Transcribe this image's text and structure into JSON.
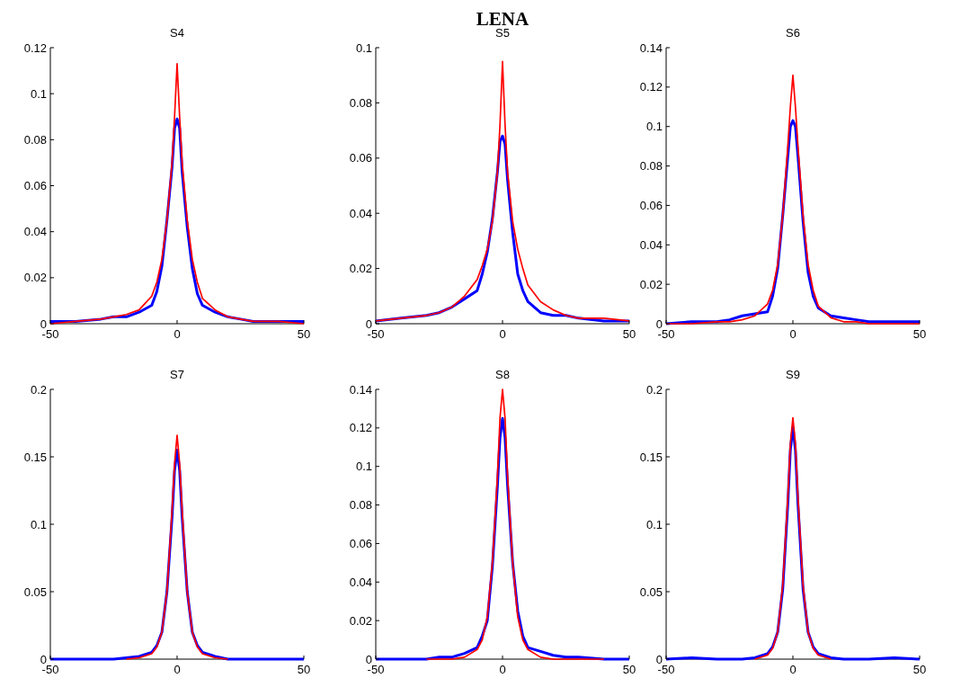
{
  "chart_data": [
    {
      "type": "line",
      "title": "S4",
      "annotations": [
        "LENA"
      ],
      "x": [
        -50,
        -40,
        -30,
        -25,
        -20,
        -15,
        -10,
        -8,
        -6,
        -4,
        -2,
        -1,
        0,
        1,
        2,
        4,
        6,
        8,
        10,
        15,
        20,
        25,
        30,
        40,
        50
      ],
      "xlim": [
        -50,
        50
      ],
      "xticks": [
        -50,
        0,
        50
      ],
      "ylim": [
        0,
        0.12
      ],
      "yticks": [
        0,
        0.02,
        0.04,
        0.06,
        0.08,
        0.1,
        0.12
      ],
      "grid": false,
      "series": [
        {
          "color": "#0000ff",
          "values": [
            0.001,
            0.001,
            0.002,
            0.003,
            0.003,
            0.005,
            0.008,
            0.014,
            0.025,
            0.045,
            0.068,
            0.085,
            0.089,
            0.085,
            0.066,
            0.042,
            0.024,
            0.013,
            0.008,
            0.005,
            0.003,
            0.002,
            0.001,
            0.001,
            0.001
          ]
        },
        {
          "color": "#ff0000",
          "values": [
            0,
            0.001,
            0.002,
            0.003,
            0.004,
            0.006,
            0.012,
            0.018,
            0.028,
            0.045,
            0.07,
            0.09,
            0.113,
            0.09,
            0.07,
            0.045,
            0.028,
            0.018,
            0.011,
            0.006,
            0.003,
            0.002,
            0.001,
            0.001,
            0
          ]
        }
      ]
    },
    {
      "type": "line",
      "title": "S5",
      "x": [
        -50,
        -40,
        -30,
        -25,
        -20,
        -15,
        -10,
        -8,
        -6,
        -4,
        -2,
        -1,
        0,
        1,
        2,
        4,
        6,
        8,
        10,
        15,
        20,
        25,
        30,
        40,
        50
      ],
      "xlim": [
        -50,
        50
      ],
      "xticks": [
        -50,
        0,
        50
      ],
      "ylim": [
        0,
        0.1
      ],
      "yticks": [
        0,
        0.02,
        0.04,
        0.06,
        0.08,
        0.1
      ],
      "grid": false,
      "series": [
        {
          "color": "#0000ff",
          "values": [
            0.001,
            0.002,
            0.003,
            0.004,
            0.006,
            0.009,
            0.012,
            0.018,
            0.026,
            0.038,
            0.055,
            0.066,
            0.068,
            0.065,
            0.052,
            0.033,
            0.018,
            0.012,
            0.008,
            0.004,
            0.003,
            0.003,
            0.002,
            0.001,
            0.001
          ]
        },
        {
          "color": "#ff0000",
          "values": [
            0.001,
            0.002,
            0.003,
            0.004,
            0.006,
            0.01,
            0.016,
            0.021,
            0.027,
            0.037,
            0.055,
            0.072,
            0.095,
            0.072,
            0.055,
            0.037,
            0.027,
            0.02,
            0.014,
            0.008,
            0.005,
            0.003,
            0.002,
            0.002,
            0.001
          ]
        }
      ]
    },
    {
      "type": "line",
      "title": "S6",
      "x": [
        -50,
        -40,
        -30,
        -25,
        -20,
        -15,
        -10,
        -8,
        -6,
        -4,
        -2,
        -1,
        0,
        1,
        2,
        4,
        6,
        8,
        10,
        15,
        20,
        25,
        30,
        40,
        50
      ],
      "xlim": [
        -50,
        50
      ],
      "xticks": [
        -50,
        0,
        50
      ],
      "ylim": [
        0,
        0.14
      ],
      "yticks": [
        0,
        0.02,
        0.04,
        0.06,
        0.08,
        0.1,
        0.12,
        0.14
      ],
      "grid": false,
      "series": [
        {
          "color": "#0000ff",
          "values": [
            0,
            0.001,
            0.001,
            0.002,
            0.004,
            0.005,
            0.006,
            0.014,
            0.028,
            0.055,
            0.085,
            0.1,
            0.103,
            0.1,
            0.085,
            0.052,
            0.026,
            0.014,
            0.008,
            0.004,
            0.003,
            0.002,
            0.001,
            0.001,
            0.001
          ]
        },
        {
          "color": "#ff0000",
          "values": [
            0,
            0,
            0.001,
            0.001,
            0.002,
            0.004,
            0.01,
            0.017,
            0.03,
            0.055,
            0.09,
            0.11,
            0.126,
            0.11,
            0.09,
            0.055,
            0.03,
            0.017,
            0.009,
            0.003,
            0.001,
            0.001,
            0,
            0,
            0
          ]
        }
      ]
    },
    {
      "type": "line",
      "title": "S7",
      "x": [
        -50,
        -40,
        -30,
        -25,
        -20,
        -15,
        -10,
        -8,
        -6,
        -4,
        -2,
        -1,
        0,
        1,
        2,
        4,
        6,
        8,
        10,
        15,
        20,
        25,
        30,
        40,
        50
      ],
      "xlim": [
        -50,
        50
      ],
      "xticks": [
        -50,
        0,
        50
      ],
      "ylim": [
        0,
        0.2
      ],
      "yticks": [
        0,
        0.05,
        0.1,
        0.15,
        0.2
      ],
      "grid": false,
      "series": [
        {
          "color": "#0000ff",
          "values": [
            0,
            0,
            0,
            0,
            0.001,
            0.002,
            0.005,
            0.01,
            0.02,
            0.05,
            0.105,
            0.14,
            0.155,
            0.14,
            0.105,
            0.05,
            0.02,
            0.01,
            0.005,
            0.002,
            0,
            0,
            0,
            0,
            0
          ]
        },
        {
          "color": "#ff0000",
          "values": [
            null,
            null,
            null,
            null,
            0,
            0.001,
            0.004,
            0.009,
            0.02,
            0.05,
            0.11,
            0.145,
            0.166,
            0.145,
            0.11,
            0.05,
            0.02,
            0.009,
            0.004,
            0.001,
            0,
            null,
            null,
            null,
            null
          ]
        }
      ]
    },
    {
      "type": "line",
      "title": "S8",
      "x": [
        -50,
        -40,
        -30,
        -25,
        -20,
        -15,
        -10,
        -8,
        -6,
        -4,
        -2,
        -1,
        0,
        1,
        2,
        4,
        6,
        8,
        10,
        15,
        20,
        25,
        30,
        40,
        50
      ],
      "xlim": [
        -50,
        50
      ],
      "xticks": [
        -50,
        0,
        50
      ],
      "ylim": [
        0,
        0.14
      ],
      "yticks": [
        0,
        0.02,
        0.04,
        0.06,
        0.08,
        0.1,
        0.12,
        0.14
      ],
      "grid": false,
      "series": [
        {
          "color": "#0000ff",
          "values": [
            0,
            0,
            0,
            0.001,
            0.001,
            0.003,
            0.006,
            0.012,
            0.02,
            0.048,
            0.09,
            0.115,
            0.125,
            0.115,
            0.09,
            0.05,
            0.025,
            0.012,
            0.006,
            0.004,
            0.002,
            0.001,
            0.001,
            0,
            0
          ]
        },
        {
          "color": "#ff0000",
          "values": [
            null,
            null,
            0,
            0,
            0,
            0.001,
            0.005,
            0.01,
            0.022,
            0.05,
            0.095,
            0.125,
            0.14,
            0.125,
            0.095,
            0.05,
            0.022,
            0.01,
            0.005,
            0.001,
            0,
            0,
            0,
            0,
            null
          ]
        }
      ]
    },
    {
      "type": "line",
      "title": "S9",
      "x": [
        -50,
        -40,
        -30,
        -25,
        -20,
        -15,
        -10,
        -8,
        -6,
        -4,
        -2,
        -1,
        0,
        1,
        2,
        4,
        6,
        8,
        10,
        15,
        20,
        25,
        30,
        40,
        50
      ],
      "xlim": [
        -50,
        50
      ],
      "xticks": [
        -50,
        0,
        50
      ],
      "ylim": [
        0,
        0.2
      ],
      "yticks": [
        0,
        0.05,
        0.1,
        0.15,
        0.2
      ],
      "grid": false,
      "series": [
        {
          "color": "#0000ff",
          "values": [
            0,
            0.001,
            0,
            0,
            0,
            0.001,
            0.004,
            0.009,
            0.02,
            0.052,
            0.115,
            0.155,
            0.172,
            0.155,
            0.115,
            0.052,
            0.02,
            0.009,
            0.004,
            0.001,
            0,
            0,
            0,
            0.001,
            0
          ]
        },
        {
          "color": "#ff0000",
          "values": [
            null,
            null,
            null,
            null,
            null,
            0,
            0.003,
            0.008,
            0.02,
            0.055,
            0.12,
            0.16,
            0.179,
            0.16,
            0.12,
            0.055,
            0.02,
            0.008,
            0.003,
            0,
            null,
            null,
            null,
            null,
            null
          ]
        }
      ]
    }
  ]
}
